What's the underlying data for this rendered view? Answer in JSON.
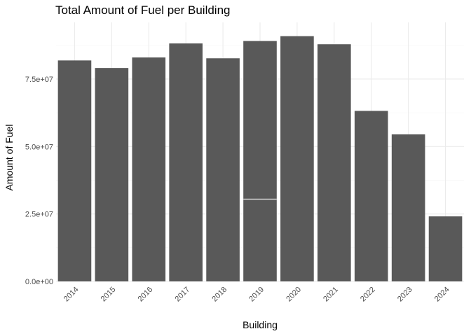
{
  "chart_data": {
    "type": "bar",
    "title": "Total Amount of Fuel per Building",
    "xlabel": "Building",
    "ylabel": "Amount of Fuel",
    "categories": [
      "2014",
      "2015",
      "2016",
      "2017",
      "2018",
      "2019",
      "2020",
      "2021",
      "2022",
      "2023",
      "2024"
    ],
    "values": [
      81900000,
      79100000,
      83000000,
      88200000,
      82700000,
      89100000,
      90900000,
      87900000,
      63200000,
      54500000,
      24100000
    ],
    "stacked_segments": [
      {
        "category": "2019",
        "bottom_segment_value": 30500000
      }
    ],
    "ylim": [
      0,
      96000000
    ],
    "yticks": [
      0,
      25000000,
      50000000,
      75000000
    ],
    "ytick_labels": [
      "0.0e+00",
      "2.5e+07",
      "5.0e+07",
      "7.5e+07"
    ],
    "bar_color": "#595959",
    "grid": true,
    "legend": "none"
  }
}
